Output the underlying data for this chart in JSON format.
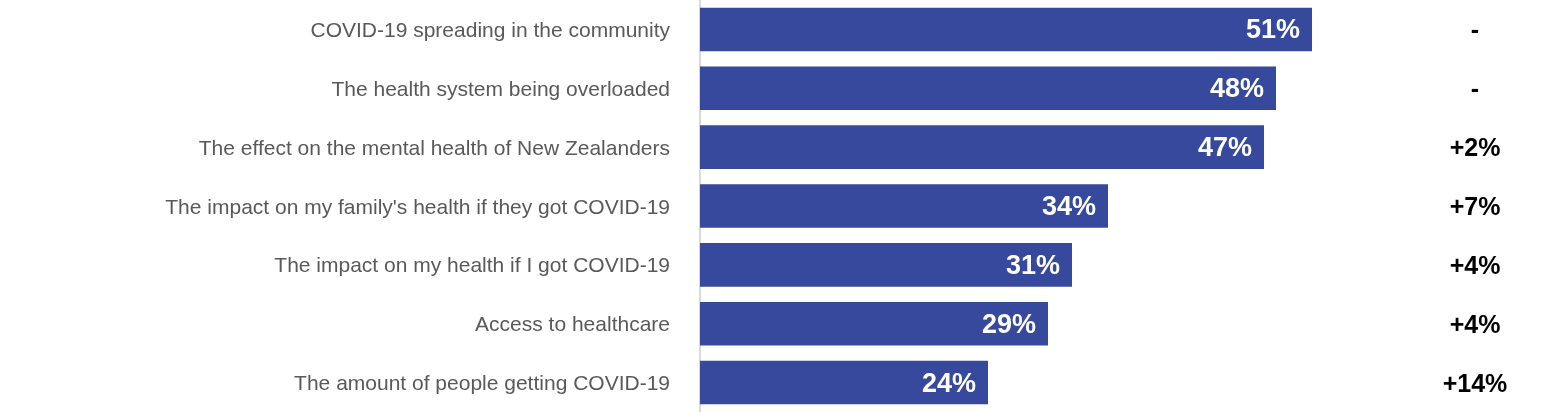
{
  "chart_data": {
    "type": "bar",
    "orientation": "horizontal",
    "categories": [
      "COVID-19 spreading in the community",
      "The health system being overloaded",
      "The effect on the mental health of New Zealanders",
      "The impact on my family's health if they got COVID-19",
      "The impact on my health if I got COVID-19",
      "Access to healthcare",
      "The amount of people getting COVID-19"
    ],
    "values": [
      51,
      48,
      47,
      34,
      31,
      29,
      24
    ],
    "value_labels": [
      "51%",
      "48%",
      "47%",
      "34%",
      "31%",
      "29%",
      "24%"
    ],
    "color": "#36499c",
    "annotations": [
      "-",
      "-",
      "+2%",
      "+7%",
      "+4%",
      "+4%",
      "+14%"
    ]
  }
}
